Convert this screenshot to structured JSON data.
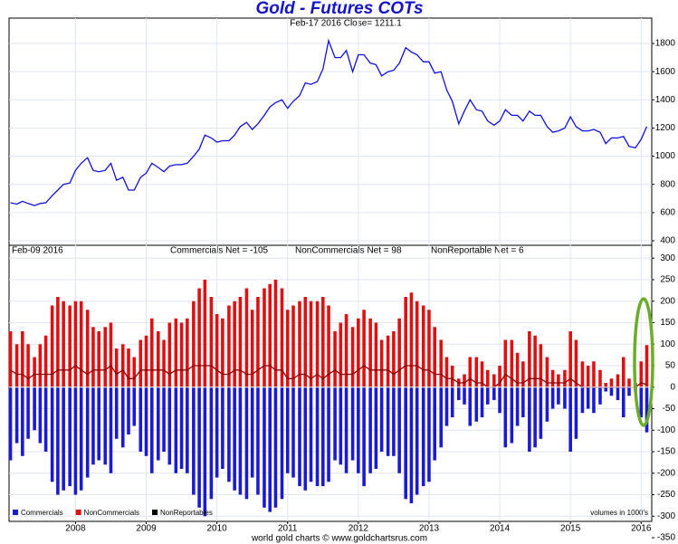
{
  "chart_data": [
    {
      "type": "line",
      "title": "Gold - Futures COTs",
      "subtitle": "Feb-17  2016    Close= 1211.1",
      "color": "#1010dd",
      "x": [
        2007.08,
        2007.17,
        2007.25,
        2007.33,
        2007.42,
        2007.5,
        2007.58,
        2007.67,
        2007.75,
        2007.83,
        2007.92,
        2008.0,
        2008.08,
        2008.17,
        2008.25,
        2008.33,
        2008.42,
        2008.5,
        2008.58,
        2008.67,
        2008.75,
        2008.83,
        2008.92,
        2009.0,
        2009.08,
        2009.17,
        2009.25,
        2009.33,
        2009.42,
        2009.5,
        2009.58,
        2009.67,
        2009.75,
        2009.83,
        2009.92,
        2010.0,
        2010.08,
        2010.17,
        2010.25,
        2010.33,
        2010.42,
        2010.5,
        2010.58,
        2010.67,
        2010.75,
        2010.83,
        2010.92,
        2011.0,
        2011.08,
        2011.17,
        2011.25,
        2011.33,
        2011.42,
        2011.5,
        2011.58,
        2011.67,
        2011.75,
        2011.83,
        2011.92,
        2012.0,
        2012.08,
        2012.17,
        2012.25,
        2012.33,
        2012.42,
        2012.5,
        2012.58,
        2012.67,
        2012.75,
        2012.83,
        2012.92,
        2013.0,
        2013.08,
        2013.17,
        2013.25,
        2013.33,
        2013.42,
        2013.5,
        2013.58,
        2013.67,
        2013.75,
        2013.83,
        2013.92,
        2014.0,
        2014.08,
        2014.17,
        2014.25,
        2014.33,
        2014.42,
        2014.5,
        2014.58,
        2014.67,
        2014.75,
        2014.83,
        2014.92,
        2015.0,
        2015.08,
        2015.17,
        2015.25,
        2015.33,
        2015.42,
        2015.5,
        2015.58,
        2015.67,
        2015.75,
        2015.83,
        2015.92,
        2016.0,
        2016.08
      ],
      "values": [
        670,
        660,
        680,
        665,
        650,
        665,
        670,
        720,
        760,
        800,
        810,
        900,
        950,
        990,
        900,
        890,
        900,
        950,
        830,
        850,
        760,
        760,
        850,
        880,
        950,
        920,
        890,
        930,
        940,
        940,
        950,
        1000,
        1050,
        1150,
        1130,
        1100,
        1110,
        1110,
        1150,
        1210,
        1240,
        1190,
        1230,
        1290,
        1350,
        1380,
        1400,
        1340,
        1390,
        1430,
        1520,
        1510,
        1530,
        1620,
        1820,
        1700,
        1700,
        1750,
        1600,
        1720,
        1720,
        1660,
        1650,
        1570,
        1600,
        1610,
        1660,
        1770,
        1740,
        1720,
        1670,
        1670,
        1590,
        1600,
        1470,
        1390,
        1230,
        1320,
        1400,
        1330,
        1320,
        1250,
        1220,
        1250,
        1330,
        1290,
        1290,
        1250,
        1320,
        1290,
        1290,
        1210,
        1170,
        1180,
        1200,
        1280,
        1210,
        1180,
        1180,
        1190,
        1170,
        1090,
        1130,
        1130,
        1140,
        1070,
        1060,
        1120,
        1211.1
      ],
      "xlim": [
        2007.06,
        2016.15
      ],
      "ylim": [
        368,
        1980
      ],
      "yticks": [
        400,
        600,
        800,
        1000,
        1200,
        1400,
        1600,
        1800
      ],
      "grid": true
    },
    {
      "type": "bar",
      "subtitle": "Feb-09  2016",
      "annotations": [
        "Commercials Net = -105",
        "NonCommercials Net = 98",
        "NonReportable Net = 6"
      ],
      "note": "volumes in 1000's",
      "footer": "world gold charts © www.goldchartsrus.com",
      "x": [
        2007.08,
        2007.17,
        2007.25,
        2007.33,
        2007.42,
        2007.5,
        2007.58,
        2007.67,
        2007.75,
        2007.83,
        2007.92,
        2008.0,
        2008.08,
        2008.17,
        2008.25,
        2008.33,
        2008.42,
        2008.5,
        2008.58,
        2008.67,
        2008.75,
        2008.83,
        2008.92,
        2009.0,
        2009.08,
        2009.17,
        2009.25,
        2009.33,
        2009.42,
        2009.5,
        2009.58,
        2009.67,
        2009.75,
        2009.83,
        2009.92,
        2010.0,
        2010.08,
        2010.17,
        2010.25,
        2010.33,
        2010.42,
        2010.5,
        2010.58,
        2010.67,
        2010.75,
        2010.83,
        2010.92,
        2011.0,
        2011.08,
        2011.17,
        2011.25,
        2011.33,
        2011.42,
        2011.5,
        2011.58,
        2011.67,
        2011.75,
        2011.83,
        2011.92,
        2012.0,
        2012.08,
        2012.17,
        2012.25,
        2012.33,
        2012.42,
        2012.5,
        2012.58,
        2012.67,
        2012.75,
        2012.83,
        2012.92,
        2013.0,
        2013.08,
        2013.17,
        2013.25,
        2013.33,
        2013.42,
        2013.5,
        2013.58,
        2013.67,
        2013.75,
        2013.83,
        2013.92,
        2014.0,
        2014.08,
        2014.17,
        2014.25,
        2014.33,
        2014.42,
        2014.5,
        2014.58,
        2014.67,
        2014.75,
        2014.83,
        2014.92,
        2015.0,
        2015.08,
        2015.17,
        2015.25,
        2015.33,
        2015.42,
        2015.5,
        2015.58,
        2015.67,
        2015.75,
        2015.83,
        2015.92,
        2016.0,
        2016.08
      ],
      "series": [
        {
          "name": "Commercials",
          "color": "#1a1ad0",
          "kind": "bar",
          "values": [
            -170,
            -130,
            -160,
            -120,
            -100,
            -130,
            -150,
            -220,
            -250,
            -240,
            -230,
            -250,
            -240,
            -210,
            -180,
            -170,
            -180,
            -200,
            -120,
            -140,
            -110,
            -90,
            -150,
            -160,
            -200,
            -170,
            -150,
            -180,
            -200,
            -190,
            -200,
            -250,
            -280,
            -300,
            -260,
            -210,
            -190,
            -220,
            -240,
            -250,
            -260,
            -210,
            -250,
            -280,
            -290,
            -280,
            -260,
            -200,
            -210,
            -230,
            -240,
            -220,
            -230,
            -230,
            -220,
            -170,
            -180,
            -200,
            -170,
            -200,
            -230,
            -200,
            -190,
            -150,
            -160,
            -160,
            -200,
            -260,
            -270,
            -250,
            -230,
            -220,
            -170,
            -140,
            -90,
            -70,
            -30,
            -40,
            -90,
            -80,
            -70,
            -40,
            -30,
            -60,
            -140,
            -130,
            -90,
            -70,
            -150,
            -140,
            -120,
            -80,
            -50,
            -40,
            -50,
            -150,
            -120,
            -60,
            -50,
            -60,
            -40,
            -10,
            -20,
            -30,
            -70,
            -20,
            -10,
            -70,
            -105
          ]
        },
        {
          "name": "NonCommercials",
          "color": "#dd1111",
          "kind": "bar",
          "values": [
            130,
            100,
            130,
            100,
            70,
            100,
            120,
            190,
            210,
            200,
            190,
            200,
            200,
            180,
            140,
            130,
            140,
            150,
            90,
            100,
            90,
            70,
            110,
            120,
            160,
            130,
            110,
            150,
            160,
            150,
            160,
            200,
            230,
            250,
            210,
            170,
            160,
            190,
            200,
            210,
            230,
            180,
            210,
            230,
            240,
            250,
            230,
            180,
            190,
            200,
            210,
            200,
            200,
            210,
            190,
            130,
            150,
            170,
            140,
            160,
            180,
            160,
            150,
            110,
            120,
            130,
            160,
            210,
            220,
            200,
            190,
            180,
            140,
            110,
            70,
            50,
            20,
            30,
            70,
            70,
            60,
            40,
            30,
            50,
            110,
            110,
            80,
            60,
            130,
            120,
            100,
            70,
            40,
            30,
            40,
            130,
            110,
            60,
            50,
            60,
            40,
            10,
            20,
            30,
            70,
            20,
            10,
            60,
            98
          ]
        },
        {
          "name": "NonReportables",
          "color": "#8a0000",
          "kind": "line",
          "values": [
            40,
            30,
            30,
            20,
            30,
            30,
            30,
            30,
            40,
            40,
            40,
            50,
            40,
            30,
            40,
            40,
            40,
            50,
            30,
            40,
            20,
            20,
            40,
            40,
            40,
            40,
            40,
            30,
            40,
            40,
            40,
            50,
            50,
            50,
            50,
            40,
            30,
            30,
            40,
            40,
            30,
            30,
            40,
            50,
            50,
            40,
            40,
            20,
            20,
            30,
            30,
            20,
            30,
            20,
            30,
            40,
            30,
            30,
            30,
            40,
            50,
            40,
            40,
            40,
            40,
            30,
            40,
            50,
            50,
            50,
            40,
            40,
            30,
            30,
            20,
            20,
            10,
            10,
            20,
            10,
            10,
            0,
            0,
            10,
            30,
            20,
            10,
            10,
            20,
            20,
            20,
            10,
            10,
            10,
            10,
            20,
            10,
            0,
            0,
            0,
            0,
            0,
            0,
            0,
            0,
            0,
            0,
            10,
            6
          ]
        }
      ],
      "xlim": [
        2007.06,
        2016.15
      ],
      "xticks": [
        2008,
        2009,
        2010,
        2011,
        2012,
        2013,
        2014,
        2015,
        2016
      ],
      "ylim": [
        -312,
        330
      ],
      "yticks": [
        300,
        250,
        200,
        150,
        100,
        50,
        0,
        -50,
        -100,
        -150,
        -200,
        -250,
        -300,
        -350
      ],
      "grid": true,
      "legend": "lower left"
    }
  ]
}
